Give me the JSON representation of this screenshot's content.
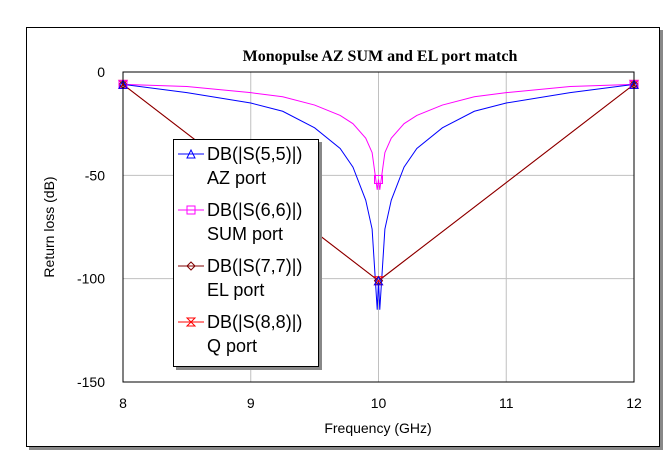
{
  "chart_data": {
    "type": "line",
    "title": "Monopulse AZ SUM and EL  port match",
    "xlabel": "Frequency (GHz)",
    "ylabel": "Return loss (dB)",
    "xlim": [
      8,
      12
    ],
    "ylim": [
      -150,
      0
    ],
    "xticks": [
      8,
      9,
      10,
      11,
      12
    ],
    "yticks": [
      0,
      -50,
      -100,
      -150
    ],
    "grid": true,
    "legend_position": "left",
    "series": [
      {
        "name": "DB(|S(5,5)|)",
        "sublabel": "AZ port",
        "color": "#0000ff",
        "marker": "triangle",
        "x": [
          8,
          8.5,
          9,
          9.25,
          9.5,
          9.7,
          9.8,
          9.9,
          9.95,
          9.99,
          10,
          10.01,
          10.05,
          10.1,
          10.2,
          10.3,
          10.5,
          10.75,
          11,
          11.5,
          12
        ],
        "y": [
          -6,
          -10,
          -15,
          -19,
          -27,
          -37,
          -46,
          -62,
          -76,
          -115,
          -101,
          -115,
          -76,
          -62,
          -46,
          -37,
          -27,
          -19,
          -15,
          -10,
          -6
        ],
        "marker_x": [
          8,
          10,
          12
        ],
        "marker_y": [
          -6,
          -101,
          -6
        ]
      },
      {
        "name": "DB(|S(6,6)|)",
        "sublabel": "SUM port",
        "color": "#ff00ff",
        "marker": "square",
        "x": [
          8,
          8.5,
          9,
          9.25,
          9.5,
          9.7,
          9.8,
          9.9,
          9.95,
          9.99,
          10,
          10.01,
          10.05,
          10.1,
          10.2,
          10.3,
          10.5,
          10.75,
          11,
          11.5,
          12
        ],
        "y": [
          -6,
          -7,
          -10,
          -12,
          -16,
          -21,
          -25,
          -32,
          -39,
          -57,
          -52,
          -57,
          -39,
          -32,
          -25,
          -21,
          -16,
          -12,
          -10,
          -7,
          -6
        ],
        "marker_x": [
          8,
          10,
          12
        ],
        "marker_y": [
          -6,
          -52,
          -6
        ]
      },
      {
        "name": "DB(|S(7,7)|)",
        "sublabel": "EL port",
        "color": "#800000",
        "marker": "diamond",
        "x": [
          8,
          10,
          12
        ],
        "y": [
          -6,
          -101,
          -6
        ],
        "marker_x": [
          8,
          10,
          12
        ],
        "marker_y": [
          -6,
          -101,
          -6
        ]
      },
      {
        "name": "DB(|S(8,8)|)",
        "sublabel": "Q port",
        "color": "#ff0000",
        "marker": "hourglass",
        "x": [
          8,
          10,
          12
        ],
        "y": [
          -6,
          -101,
          -6
        ],
        "marker_x": [
          8,
          10,
          12
        ],
        "marker_y": [
          -6,
          -101,
          -6
        ]
      }
    ]
  }
}
